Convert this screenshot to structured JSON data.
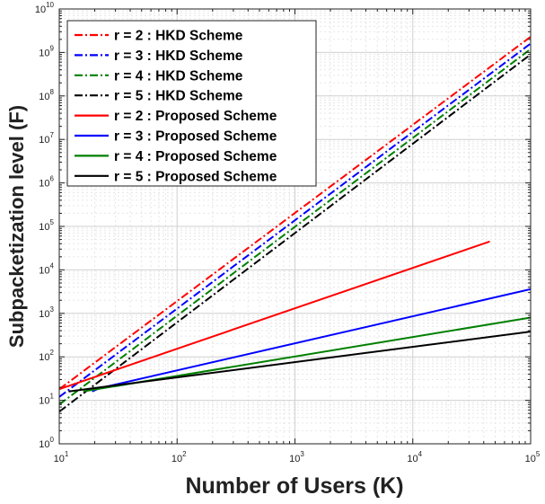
{
  "chart_data": {
    "type": "line",
    "xscale": "log",
    "yscale": "log",
    "xlim": [
      10,
      100000
    ],
    "ylim": [
      1,
      10000000000
    ],
    "grid": true,
    "xlabel": "Number of Users (K)",
    "ylabel": "Subpacketization level (F)",
    "x_ticks": [
      {
        "base": "10",
        "exp": "1"
      },
      {
        "base": "10",
        "exp": "2"
      },
      {
        "base": "10",
        "exp": "3"
      },
      {
        "base": "10",
        "exp": "4"
      },
      {
        "base": "10",
        "exp": "5"
      }
    ],
    "y_ticks": [
      {
        "base": "10",
        "exp": "0"
      },
      {
        "base": "10",
        "exp": "1"
      },
      {
        "base": "10",
        "exp": "2"
      },
      {
        "base": "10",
        "exp": "3"
      },
      {
        "base": "10",
        "exp": "4"
      },
      {
        "base": "10",
        "exp": "5"
      },
      {
        "base": "10",
        "exp": "6"
      },
      {
        "base": "10",
        "exp": "7"
      },
      {
        "base": "10",
        "exp": "8"
      },
      {
        "base": "10",
        "exp": "9"
      },
      {
        "base": "10",
        "exp": "10"
      }
    ],
    "legend_position": "top-left",
    "series": [
      {
        "name": "r = 2 : HKD Scheme",
        "color": "#ff0000",
        "style": "dashdot",
        "x": [
          10,
          100000
        ],
        "y": [
          18,
          2300000000
        ]
      },
      {
        "name": "r = 3 : HKD Scheme",
        "color": "#0000ff",
        "style": "dashdot",
        "x": [
          10,
          100000
        ],
        "y": [
          12,
          1600000000
        ]
      },
      {
        "name": "r = 4 : HKD Scheme",
        "color": "#008000",
        "style": "dashdot",
        "x": [
          10,
          100000
        ],
        "y": [
          8,
          1200000000
        ]
      },
      {
        "name": "r = 5 : HKD Scheme",
        "color": "#000000",
        "style": "dashdot",
        "x": [
          10,
          100000
        ],
        "y": [
          5.5,
          900000000
        ]
      },
      {
        "name": "r = 2 : Proposed Scheme",
        "color": "#ff0000",
        "style": "solid",
        "x": [
          10,
          45000
        ],
        "y": [
          18,
          45000
        ]
      },
      {
        "name": "r = 3 : Proposed Scheme",
        "color": "#0000ff",
        "style": "solid",
        "x": [
          19,
          22,
          100000
        ],
        "y": [
          16,
          19,
          3600
        ]
      },
      {
        "name": "r = 4 : Proposed Scheme",
        "color": "#008000",
        "style": "solid",
        "x": [
          16,
          100000
        ],
        "y": [
          16,
          800
        ]
      },
      {
        "name": "r = 5 : Proposed Scheme",
        "color": "#000000",
        "style": "solid",
        "x": [
          12,
          100000
        ],
        "y": [
          16,
          380
        ]
      }
    ]
  }
}
